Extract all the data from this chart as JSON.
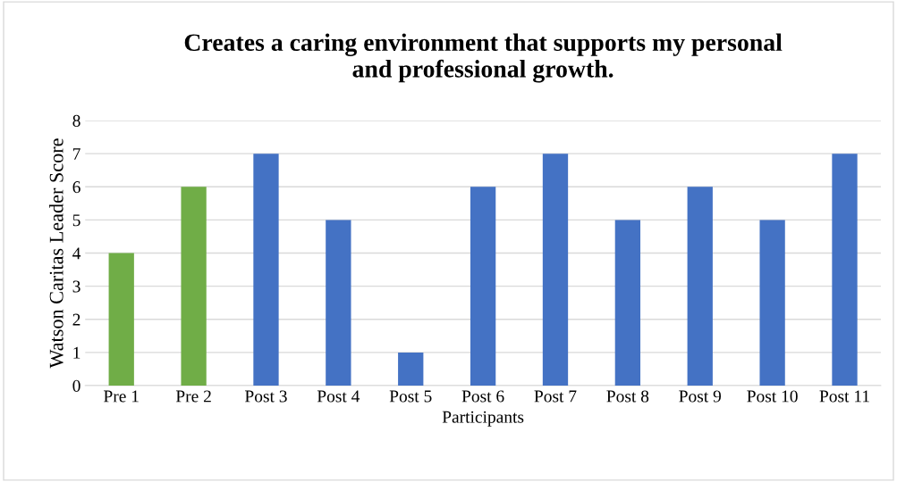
{
  "chart_data": {
    "type": "bar",
    "title": "Creates a caring environment that supports my personal\nand professional growth.",
    "xlabel": "Participants",
    "ylabel": "Watson Caritas Leader Score",
    "categories": [
      "Pre 1",
      "Pre 2",
      "Post 3",
      "Post 4",
      "Post 5",
      "Post 6",
      "Post 7",
      "Post 8",
      "Post 9",
      "Post 10",
      "Post 11"
    ],
    "values": [
      4,
      6,
      7,
      5,
      1,
      6,
      7,
      5,
      6,
      5,
      7
    ],
    "colors": [
      "#70ad47",
      "#70ad47",
      "#4472c4",
      "#4472c4",
      "#4472c4",
      "#4472c4",
      "#4472c4",
      "#4472c4",
      "#4472c4",
      "#4472c4",
      "#4472c4"
    ],
    "ylim": [
      0,
      8
    ],
    "yticks": [
      0,
      1,
      2,
      3,
      4,
      5,
      6,
      7,
      8
    ],
    "grid": "y",
    "legend": false
  }
}
